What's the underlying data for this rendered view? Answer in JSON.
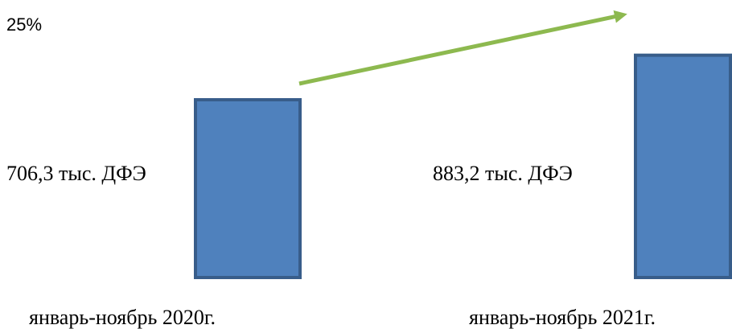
{
  "chart_data": {
    "type": "bar",
    "categories": [
      "январь-ноябрь 2020г.",
      "январь-ноябрь 2021г."
    ],
    "values": [
      706.3,
      883.2
    ],
    "value_labels": [
      "706,3 тыс. ДФЭ",
      "883,2 тыс. ДФЭ"
    ],
    "growth_label": "25%",
    "colors": {
      "bar_fill": "#4f81bd",
      "bar_stroke": "#385d8a",
      "arrow": "#8db94f"
    }
  }
}
